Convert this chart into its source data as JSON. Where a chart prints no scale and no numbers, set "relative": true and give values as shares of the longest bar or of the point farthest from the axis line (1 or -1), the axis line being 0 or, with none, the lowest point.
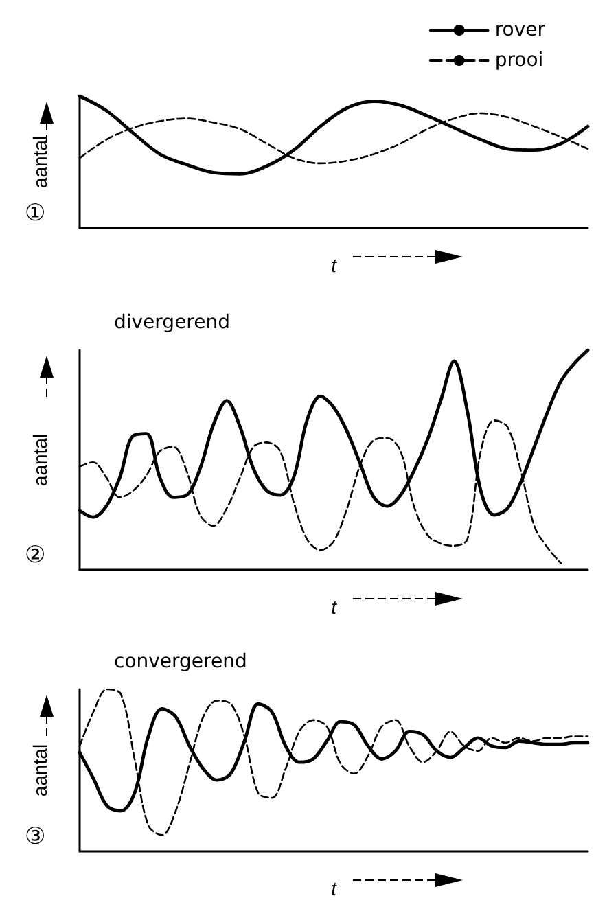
{
  "chart_data": [
    {
      "type": "line",
      "relative": true,
      "xlabel": "t",
      "ylabel": "aantal",
      "legend": "top right",
      "marker": "none",
      "annotations": [
        "①"
      ],
      "categories": [
        null,
        null,
        null,
        null,
        null,
        null,
        null,
        null,
        null,
        null,
        null,
        null,
        null,
        null,
        null,
        null,
        null,
        null,
        null,
        null
      ],
      "series": [
        {
          "name": "rover",
          "color": "#000000",
          "line_style": "solid",
          "values": [
            1.0,
            0.89,
            0.72,
            0.56,
            0.48,
            0.42,
            0.41,
            0.47,
            0.59,
            0.77,
            0.91,
            0.96,
            0.93,
            0.85,
            0.76,
            0.67,
            0.6,
            0.59,
            0.64,
            0.77
          ]
        },
        {
          "name": "prooi",
          "color": "#000000",
          "line_style": "dashed",
          "values": [
            0.53,
            0.67,
            0.76,
            0.81,
            0.83,
            0.8,
            0.75,
            0.64,
            0.53,
            0.49,
            0.51,
            0.56,
            0.64,
            0.75,
            0.83,
            0.87,
            0.84,
            0.77,
            0.69,
            0.6
          ]
        }
      ]
    },
    {
      "type": "line",
      "relative": true,
      "title": "divergerend",
      "xlabel": "t",
      "ylabel": "aantal",
      "marker": "none",
      "annotations": [
        "②"
      ],
      "categories": [
        null,
        null,
        null,
        null,
        null,
        null,
        null,
        null,
        null,
        null,
        null,
        null,
        null,
        null,
        null,
        null,
        null,
        null,
        null,
        null,
        null,
        null,
        null,
        null,
        null,
        null,
        null,
        null,
        null,
        null,
        null,
        null,
        null,
        null,
        null,
        null,
        null,
        null,
        null
      ],
      "series": [
        {
          "color": "#000000",
          "line_style": "solid",
          "values": [
            0.27,
            0.24,
            0.29,
            0.42,
            0.61,
            0.62,
            0.42,
            0.33,
            0.34,
            0.46,
            0.66,
            0.77,
            0.65,
            0.46,
            0.36,
            0.34,
            0.42,
            0.68,
            0.79,
            0.74,
            0.63,
            0.48,
            0.33,
            0.29,
            0.34,
            0.45,
            0.59,
            0.77,
            0.95,
            0.72,
            0.36,
            0.25,
            0.28,
            0.4,
            0.56,
            0.72,
            0.86,
            0.94,
            1.0
          ]
        },
        {
          "color": "#000000",
          "line_style": "dashed",
          "values": [
            0.47,
            0.49,
            0.42,
            0.33,
            0.36,
            0.43,
            0.54,
            0.56,
            0.45,
            0.25,
            0.2,
            0.28,
            0.42,
            0.56,
            0.58,
            0.54,
            0.31,
            0.14,
            0.09,
            0.13,
            0.28,
            0.48,
            0.59,
            0.6,
            0.54,
            0.29,
            0.16,
            0.12,
            0.11,
            0.14,
            0.54,
            0.68,
            0.65,
            0.45,
            0.2,
            0.1,
            0.03,
            null,
            null
          ]
        }
      ]
    },
    {
      "type": "line",
      "relative": true,
      "title": "convergerend",
      "xlabel": "t",
      "ylabel": "aantal",
      "marker": "none",
      "annotations": [
        "③"
      ],
      "categories": [
        null,
        null,
        null,
        null,
        null,
        null,
        null,
        null,
        null,
        null,
        null,
        null,
        null,
        null,
        null,
        null,
        null,
        null,
        null,
        null,
        null,
        null,
        null,
        null,
        null,
        null,
        null,
        null,
        null,
        null,
        null,
        null,
        null,
        null,
        null,
        null,
        null,
        null
      ],
      "series": [
        {
          "color": "#000000",
          "line_style": "solid",
          "values": [
            0.61,
            0.45,
            0.28,
            0.25,
            0.36,
            0.71,
            0.88,
            0.83,
            0.65,
            0.51,
            0.44,
            0.48,
            0.68,
            0.91,
            0.86,
            0.65,
            0.55,
            0.57,
            0.68,
            0.8,
            0.78,
            0.65,
            0.57,
            0.62,
            0.74,
            0.72,
            0.62,
            0.58,
            0.64,
            0.7,
            0.65,
            0.64,
            0.68,
            0.67,
            0.66,
            0.66,
            0.67,
            0.67
          ]
        },
        {
          "color": "#000000",
          "line_style": "dashed",
          "values": [
            0.65,
            0.86,
            1.0,
            0.97,
            0.57,
            0.16,
            0.1,
            0.25,
            0.54,
            0.83,
            0.93,
            0.91,
            0.71,
            0.36,
            0.33,
            0.51,
            0.74,
            0.81,
            0.77,
            0.54,
            0.48,
            0.59,
            0.77,
            0.81,
            0.65,
            0.55,
            0.62,
            0.74,
            0.65,
            0.62,
            0.7,
            0.67,
            0.7,
            0.68,
            0.7,
            0.7,
            0.71,
            0.71
          ]
        }
      ]
    }
  ]
}
